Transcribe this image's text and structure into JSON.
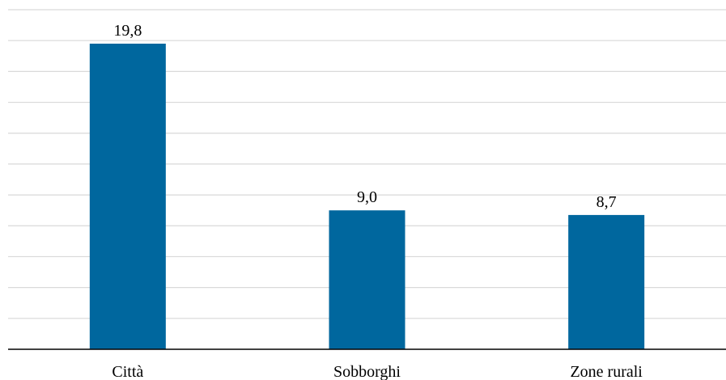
{
  "chart_data": {
    "type": "bar",
    "categories": [
      "Città",
      "Sobborghi",
      "Zone rurali"
    ],
    "values": [
      19.8,
      9.0,
      8.7
    ],
    "value_labels": [
      "19,8",
      "9,0",
      "8,7"
    ],
    "title": "",
    "xlabel": "",
    "ylabel": "",
    "ylim": [
      0,
      22
    ],
    "grid": true,
    "legend": "none",
    "bar_color": "#00679e"
  }
}
